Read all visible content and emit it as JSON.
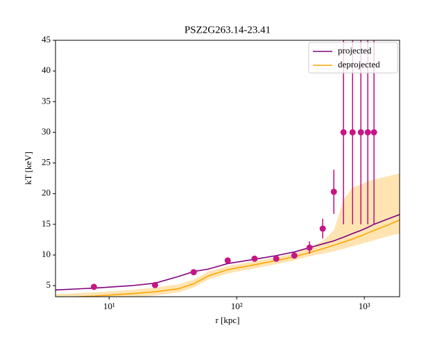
{
  "chart_data": {
    "type": "line",
    "title": "PSZ2G263.14-23.41",
    "x_label": "r [kpc]",
    "y_label": "kT [keV]",
    "log_x": true,
    "xlim": [
      3.8,
      1890
    ],
    "ylim": [
      3.2,
      45
    ],
    "xticks": [
      {
        "value": 10,
        "label": "10¹"
      },
      {
        "value": 100,
        "label": "10²"
      },
      {
        "value": 1000,
        "label": "10³"
      }
    ],
    "yticks": [
      5,
      10,
      15,
      20,
      25,
      30,
      35,
      40,
      45
    ],
    "legend": "upper right",
    "x": [
      3.8,
      7.6,
      15,
      22.9,
      35,
      46,
      60,
      85,
      138,
      204,
      283,
      372,
      472,
      577,
      687,
      809,
      940,
      1065,
      1191,
      1500,
      1890
    ],
    "series": [
      {
        "name": "projected",
        "color": "#800080",
        "values": [
          4.3,
          4.6,
          5.0,
          5.4,
          6.5,
          7.3,
          7.7,
          8.6,
          9.3,
          9.9,
          10.5,
          11.2,
          11.8,
          12.3,
          12.9,
          13.5,
          14.0,
          14.5,
          15.0,
          15.8,
          16.6
        ]
      },
      {
        "name": "deprojected",
        "color": "#ffa500",
        "values": [
          3.0,
          3.3,
          3.7,
          4.0,
          4.5,
          5.3,
          6.6,
          7.6,
          8.4,
          9.1,
          9.7,
          10.4,
          11.0,
          11.6,
          12.1,
          12.6,
          13.1,
          13.6,
          14.0,
          14.8,
          15.7
        ],
        "band_lower": [
          2.4,
          2.7,
          3.1,
          3.4,
          3.9,
          4.7,
          6.0,
          7.0,
          7.8,
          8.5,
          9.1,
          9.8,
          10.2,
          10.6,
          11.0,
          11.4,
          11.8,
          12.1,
          12.4,
          13.0,
          13.5
        ],
        "band_upper": [
          3.6,
          3.9,
          4.3,
          4.7,
          5.2,
          6.0,
          7.3,
          8.2,
          9.0,
          9.6,
          10.3,
          11.2,
          12.3,
          14.0,
          19.0,
          21.0,
          21.5,
          22.0,
          22.3,
          22.8,
          23.3
        ]
      }
    ],
    "points": {
      "color": "#c71585",
      "x": [
        7.6,
        22.9,
        46,
        85,
        138,
        204,
        283,
        372,
        472,
        577,
        687,
        809,
        940,
        1065,
        1191
      ],
      "values": [
        4.8,
        5.1,
        7.2,
        9.1,
        9.4,
        9.4,
        9.9,
        11.2,
        14.3,
        20.3,
        30,
        30,
        30,
        30,
        30
      ],
      "errors": [
        0.2,
        0.2,
        0.3,
        0.5,
        0.4,
        0.4,
        0.4,
        1.0,
        1.6,
        3.6,
        15,
        15,
        15,
        15,
        15
      ]
    }
  }
}
